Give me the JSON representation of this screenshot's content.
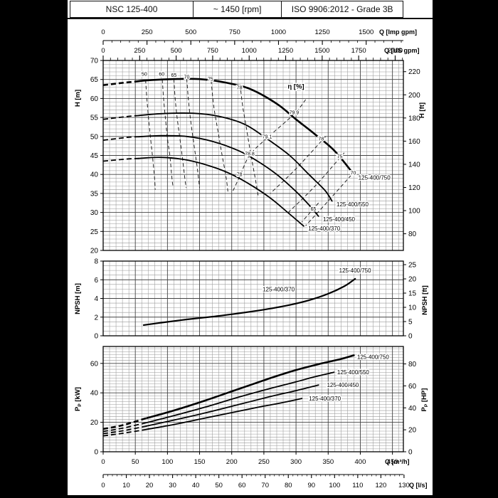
{
  "header": {
    "cells": [
      {
        "label": "NSC 125-400"
      },
      {
        "label": "~ 1450 [rpm]"
      },
      {
        "label": "ISO 9906:2012 - Grade 3B"
      }
    ]
  },
  "colors": {
    "ink": "#000000",
    "grid_minor": "#9a9a9a",
    "grid_major": "#444444",
    "paper": "#ffffff",
    "margin": "#000000"
  },
  "chart_data": [
    {
      "id": "head",
      "type": "line",
      "title": "η [%]",
      "title_pos": {
        "q": 287,
        "v": 63.2
      },
      "x_range": [
        0,
        467
      ],
      "y_range": [
        20,
        70
      ],
      "x_top_axes": [
        {
          "label": "Q [Imp gpm]",
          "unit_to_m3h": 0.27276,
          "major": 250,
          "minor": 50,
          "max": 1750
        },
        {
          "label": "Q [US gpm]",
          "unit_to_m3h": 0.22712,
          "major": 250,
          "minor": 50,
          "max": 2050
        }
      ],
      "y_left": {
        "label_parts": [
          "H",
          "",
          " [m]"
        ],
        "ticks": [
          20,
          25,
          30,
          35,
          40,
          45,
          50,
          55,
          60,
          65,
          70
        ]
      },
      "y_right": {
        "label_parts": [
          "H",
          "",
          " [ft]"
        ],
        "ticks": [
          80,
          100,
          120,
          140,
          160,
          180,
          200,
          220
        ],
        "unit_to_left": 0.3048
      },
      "series": [
        {
          "name": "125-400/750",
          "solid_from": 55,
          "width": 2.6,
          "points": [
            [
              0,
              63.5
            ],
            [
              30,
              64.1
            ],
            [
              70,
              64.8
            ],
            [
              110,
              65.1
            ],
            [
              150,
              65.1
            ],
            [
              190,
              64.2
            ],
            [
              230,
              62.4
            ],
            [
              271,
              58.5
            ],
            [
              300,
              54.5
            ],
            [
              330,
              50.5
            ],
            [
              360,
              46.2
            ],
            [
              390,
              40
            ]
          ],
          "label": {
            "q": 397,
            "v": 39.2
          }
        },
        {
          "name": "125-400/550",
          "solid_from": 55,
          "width": 1.8,
          "points": [
            [
              0,
              54.5
            ],
            [
              40,
              55.3
            ],
            [
              90,
              56.0
            ],
            [
              140,
              56.1
            ],
            [
              180,
              55.3
            ],
            [
              220,
              53.2
            ],
            [
              254,
              49.5
            ],
            [
              290,
              45.0
            ],
            [
              320,
              40.0
            ],
            [
              345,
              35.8
            ],
            [
              356,
              33.0
            ]
          ],
          "label": {
            "q": 363,
            "v": 32.2
          }
        },
        {
          "name": "125-400/450",
          "solid_from": 55,
          "width": 1.8,
          "points": [
            [
              0,
              49.0
            ],
            [
              40,
              49.8
            ],
            [
              90,
              50.2
            ],
            [
              130,
              50.0
            ],
            [
              170,
              48.7
            ],
            [
              210,
              46.3
            ],
            [
              240,
              43.5
            ],
            [
              270,
              40.0
            ],
            [
              300,
              35.5
            ],
            [
              320,
              32.0
            ],
            [
              335,
              29.0
            ]
          ],
          "label": {
            "q": 342,
            "v": 28.2
          }
        },
        {
          "name": "125-400/370",
          "solid_from": 55,
          "width": 1.8,
          "points": [
            [
              0,
              43.5
            ],
            [
              40,
              44.1
            ],
            [
              90,
              44.5
            ],
            [
              130,
              43.8
            ],
            [
              170,
              42.0
            ],
            [
              200,
              40.0
            ],
            [
              230,
              37.2
            ],
            [
              260,
              33.8
            ],
            [
              285,
              30.3
            ],
            [
              312,
              26.4
            ]
          ],
          "label": {
            "q": 319,
            "v": 25.8
          }
        }
      ],
      "efficiency_contours": [
        {
          "points": [
            [
              66,
              64.9
            ],
            [
              68,
              60
            ],
            [
              71,
              54
            ],
            [
              74,
              49
            ],
            [
              77,
              44.3
            ],
            [
              80,
              39
            ],
            [
              81,
              36
            ]
          ]
        },
        {
          "points": [
            [
              92,
              65
            ],
            [
              94,
              60
            ],
            [
              97,
              54.5
            ],
            [
              100,
              49.5
            ],
            [
              104,
              44.6
            ],
            [
              107,
              39
            ],
            [
              109,
              36.5
            ]
          ]
        },
        {
          "points": [
            [
              110,
              65.1
            ],
            [
              112,
              60
            ],
            [
              115,
              55
            ],
            [
              119,
              50
            ],
            [
              123,
              44.8
            ],
            [
              127,
              39
            ],
            [
              129,
              36.5
            ]
          ]
        },
        {
          "points": [
            [
              130,
              65.2
            ],
            [
              133,
              59
            ],
            [
              137,
              53
            ],
            [
              142,
              47
            ],
            [
              147,
              41
            ],
            [
              150,
              36.5
            ]
          ]
        },
        {
          "points": [
            [
              168,
              64.7
            ],
            [
              172,
              58
            ],
            [
              178,
              52
            ],
            [
              184,
              46
            ],
            [
              191,
              39.5
            ],
            [
              194,
              35.5
            ]
          ]
        },
        {
          "points": [
            [
              213,
              63.7
            ],
            [
              217,
              58
            ],
            [
              223,
              52
            ],
            [
              229,
              46
            ],
            [
              237,
              38.5
            ],
            [
              241,
              34.5
            ]
          ]
        },
        {
          "points": [
            [
              346,
              50
            ],
            [
              300,
              41.5
            ],
            [
              260,
              35
            ]
          ]
        },
        {
          "points": [
            [
              375,
              45.7
            ],
            [
              330,
              37
            ],
            [
              288,
              30
            ]
          ]
        },
        {
          "points": [
            [
              392,
              41
            ],
            [
              350,
              33
            ],
            [
              315,
              26.5
            ]
          ]
        },
        {
          "points": [
            [
              335,
              32.5
            ],
            [
              309,
              27.5
            ]
          ]
        },
        {
          "points": [
            [
              315,
              59.7
            ],
            [
              297,
              55.9
            ],
            [
              255,
              49.6
            ],
            [
              228,
              45.1
            ],
            [
              213,
              39.7
            ],
            [
              202,
              35.7
            ]
          ]
        }
      ],
      "efficiency_labels": [
        {
          "text": "50",
          "q": 64,
          "v": 66.4
        },
        {
          "text": "60",
          "q": 91,
          "v": 66.4
        },
        {
          "text": "65",
          "q": 110,
          "v": 66.2
        },
        {
          "text": "70",
          "q": 130,
          "v": 65.7
        },
        {
          "text": "75",
          "q": 167,
          "v": 65.1
        },
        {
          "text": "78",
          "q": 212,
          "v": 62.9
        },
        {
          "text": "78",
          "q": 339,
          "v": 49.4
        },
        {
          "text": "75",
          "q": 368,
          "v": 44.7
        },
        {
          "text": "70",
          "q": 389,
          "v": 40.4
        },
        {
          "text": "65",
          "q": 327,
          "v": 31.0
        },
        {
          "text": "79.9",
          "q": 297,
          "v": 56.3
        },
        {
          "text": "79.1",
          "q": 255,
          "v": 50.0
        },
        {
          "text": "78.8",
          "q": 228,
          "v": 45.5
        },
        {
          "text": "78",
          "q": 212,
          "v": 40.0
        }
      ]
    },
    {
      "id": "npsh",
      "type": "line",
      "x_range": [
        0,
        467
      ],
      "y_range": [
        0,
        8
      ],
      "y_left": {
        "label_parts": [
          "NPSH",
          "",
          " [m]"
        ],
        "ticks": [
          0,
          2,
          4,
          6,
          8
        ]
      },
      "y_right": {
        "label_parts": [
          "NPSH",
          "",
          " [ft]"
        ],
        "ticks": [
          0,
          5,
          10,
          15,
          20,
          25
        ],
        "unit_to_left": 0.3048
      },
      "series": [
        {
          "name": "125-400/750",
          "solid_from": 0,
          "width": 2.2,
          "points": [
            [
              63,
              1.15
            ],
            [
              90,
              1.4
            ],
            [
              130,
              1.75
            ],
            [
              170,
              2.05
            ],
            [
              210,
              2.4
            ],
            [
              250,
              2.8
            ],
            [
              290,
              3.3
            ],
            [
              320,
              3.8
            ],
            [
              350,
              4.5
            ],
            [
              375,
              5.3
            ],
            [
              392,
              6.1
            ]
          ],
          "label": {
            "q": 367,
            "v": 7.0
          },
          "extra_label": {
            "name": "125-400/370",
            "q": 248,
            "v": 5.0
          }
        }
      ]
    },
    {
      "id": "power",
      "type": "line",
      "x_range": [
        0,
        467
      ],
      "y_range": [
        0,
        71.5
      ],
      "y_left": {
        "label_parts": [
          "P",
          "P",
          " [kW]"
        ],
        "ticks": [
          0,
          20,
          40,
          60
        ]
      },
      "y_right": {
        "label_parts": [
          "P",
          "P",
          " [HP]"
        ],
        "ticks": [
          0,
          20,
          40,
          60,
          80
        ],
        "unit_to_left": 0.7457
      },
      "x_bottom_axes": [
        {
          "label": "Q [m³/h]",
          "unit_to_m3h": 1,
          "major": 50,
          "minor": 0,
          "max": 450,
          "ruler": false
        },
        {
          "label": "Q [l/s]",
          "unit_to_m3h": 3.6,
          "major": 10,
          "minor": 2,
          "max": 130,
          "ruler": true
        }
      ],
      "series": [
        {
          "name": "125-400/750",
          "solid_from": 68,
          "width": 2.6,
          "points": [
            [
              0,
              15.5
            ],
            [
              30,
              18.0
            ],
            [
              65,
              22.5
            ],
            [
              110,
              28.0
            ],
            [
              160,
              35.0
            ],
            [
              210,
              42.5
            ],
            [
              260,
              50.0
            ],
            [
              300,
              55.5
            ],
            [
              340,
              60.0
            ],
            [
              370,
              63.0
            ],
            [
              390,
              65.5
            ]
          ],
          "label": {
            "q": 395,
            "v": 64.5
          }
        },
        {
          "name": "125-400/550",
          "solid_from": 68,
          "width": 1.8,
          "points": [
            [
              0,
              13.8
            ],
            [
              30,
              16.0
            ],
            [
              65,
              19.5
            ],
            [
              110,
              24.5
            ],
            [
              160,
              30.5
            ],
            [
              210,
              37.0
            ],
            [
              260,
              43.0
            ],
            [
              300,
              47.5
            ],
            [
              330,
              51.0
            ],
            [
              359,
              54.0
            ]
          ],
          "label": {
            "q": 364,
            "v": 54.2
          }
        },
        {
          "name": "125-400/450",
          "solid_from": 68,
          "width": 1.8,
          "points": [
            [
              0,
              12.3
            ],
            [
              30,
              14.2
            ],
            [
              65,
              17.2
            ],
            [
              110,
              21.5
            ],
            [
              160,
              26.5
            ],
            [
              210,
              32.0
            ],
            [
              260,
              37.5
            ],
            [
              300,
              41.5
            ],
            [
              335,
              45.3
            ]
          ],
          "label": {
            "q": 348,
            "v": 45.5
          }
        },
        {
          "name": "125-400/370",
          "solid_from": 68,
          "width": 1.8,
          "points": [
            [
              0,
              10.8
            ],
            [
              30,
              12.5
            ],
            [
              65,
              15.0
            ],
            [
              110,
              18.5
            ],
            [
              160,
              23.0
            ],
            [
              210,
              27.5
            ],
            [
              250,
              31.0
            ],
            [
              280,
              33.5
            ],
            [
              309,
              36.2
            ]
          ],
          "label": {
            "q": 320,
            "v": 36.3
          }
        }
      ]
    }
  ]
}
